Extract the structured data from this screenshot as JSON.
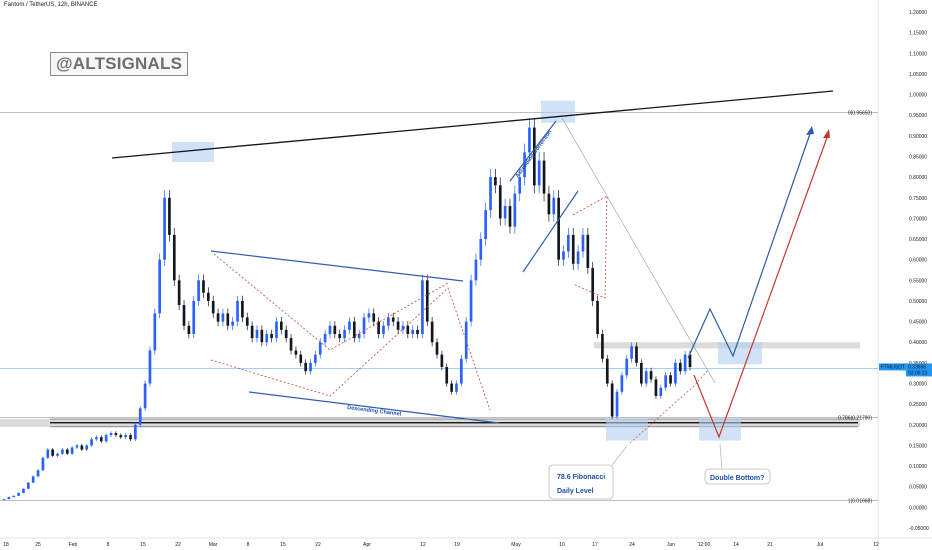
{
  "header": {
    "symbol_title": "Fantom / TetherUS, 12h, BINANCE"
  },
  "watermark": {
    "text": "@ALTSIGNALS"
  },
  "colors": {
    "up": "#2962ff",
    "down": "#131722",
    "trendline": "#131722",
    "channel": "#2f5fb3",
    "zone": "#b3cff0",
    "projection_blue": "#2a5ca8",
    "projection_red": "#c0392b",
    "dashed_red": "#d04040",
    "price_tag": "#2196f3"
  },
  "chart_data": {
    "type": "candlestick",
    "title": "Fantom / TetherUS, 12h, BINANCE",
    "x_ticks": [
      "18",
      "25",
      "Feb",
      "8",
      "15",
      "22",
      "Mar",
      "8",
      "15",
      "22",
      "Apr",
      "12",
      "19",
      "May",
      "10",
      "17",
      "24",
      "Jun",
      "12:00",
      "14",
      "21",
      "Jul",
      "12"
    ],
    "y_ticks": [
      "1.20000",
      "1.15000",
      "1.10000",
      "1.05000",
      "1.00000",
      "0.95000",
      "0.90000",
      "0.85000",
      "0.80000",
      "0.75000",
      "0.70000",
      "0.65000",
      "0.60000",
      "0.55000",
      "0.50000",
      "0.45000",
      "0.40000",
      "0.35000",
      "0.30000",
      "0.25000",
      "0.20000",
      "0.15000",
      "0.10000",
      "0.05000",
      "0.00000",
      "-0.05000"
    ],
    "ylim": [
      -0.05,
      1.2
    ],
    "fib_levels": [
      {
        "label": "0(0.95650)",
        "value": 0.9565
      },
      {
        "label": "0.786(0.21780)",
        "value": 0.2178
      },
      {
        "label": "1(0.01668)",
        "value": 0.01668
      }
    ],
    "last_price": {
      "symbol": "FTMUSDT",
      "value": "0.33656",
      "countdown": "03:06:23"
    },
    "closes": [
      0.02,
      0.025,
      0.028,
      0.035,
      0.045,
      0.06,
      0.075,
      0.09,
      0.12,
      0.14,
      0.125,
      0.13,
      0.14,
      0.13,
      0.145,
      0.15,
      0.14,
      0.15,
      0.165,
      0.17,
      0.16,
      0.175,
      0.18,
      0.175,
      0.17,
      0.175,
      0.165,
      0.2,
      0.24,
      0.3,
      0.38,
      0.47,
      0.6,
      0.75,
      0.66,
      0.55,
      0.49,
      0.44,
      0.42,
      0.5,
      0.55,
      0.52,
      0.5,
      0.47,
      0.45,
      0.47,
      0.44,
      0.45,
      0.5,
      0.46,
      0.44,
      0.41,
      0.43,
      0.4,
      0.42,
      0.41,
      0.45,
      0.43,
      0.41,
      0.38,
      0.37,
      0.35,
      0.33,
      0.35,
      0.37,
      0.4,
      0.42,
      0.44,
      0.42,
      0.41,
      0.43,
      0.45,
      0.41,
      0.42,
      0.46,
      0.47,
      0.45,
      0.42,
      0.44,
      0.46,
      0.45,
      0.43,
      0.44,
      0.42,
      0.43,
      0.42,
      0.55,
      0.45,
      0.4,
      0.37,
      0.34,
      0.3,
      0.28,
      0.3,
      0.36,
      0.45,
      0.55,
      0.6,
      0.65,
      0.72,
      0.8,
      0.78,
      0.7,
      0.73,
      0.68,
      0.76,
      0.8,
      0.86,
      0.92,
      0.78,
      0.84,
      0.76,
      0.71,
      0.75,
      0.6,
      0.62,
      0.66,
      0.59,
      0.62,
      0.66,
      0.58,
      0.5,
      0.42,
      0.36,
      0.3,
      0.22,
      0.28,
      0.32,
      0.36,
      0.39,
      0.35,
      0.3,
      0.33,
      0.31,
      0.27,
      0.29,
      0.32,
      0.3,
      0.35,
      0.33,
      0.37,
      0.34
    ],
    "annotations": [
      "Ascending Correction",
      "Descending Channel",
      "78.6 Fibonacci",
      "Daily Level",
      "Double Bottom?"
    ]
  }
}
